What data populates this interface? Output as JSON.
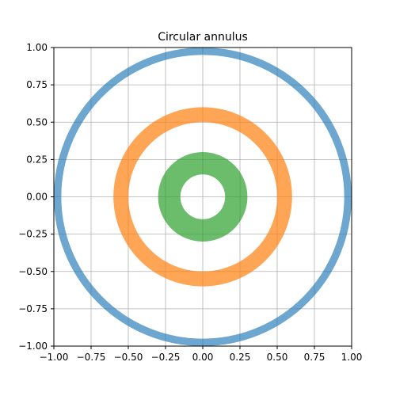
{
  "chart_data": {
    "type": "annulus",
    "title": "Circular annulus",
    "xlabel": "",
    "ylabel": "",
    "xlim": [
      -1.0,
      1.0
    ],
    "ylim": [
      -1.0,
      1.0
    ],
    "xticks": [
      -1.0,
      -0.75,
      -0.5,
      -0.25,
      0.0,
      0.25,
      0.5,
      0.75,
      1.0
    ],
    "yticks": [
      -1.0,
      -0.75,
      -0.5,
      -0.25,
      0.0,
      0.25,
      0.5,
      0.75,
      1.0
    ],
    "xtick_labels": [
      "−1.00",
      "−0.75",
      "−0.50",
      "−0.25",
      "0.00",
      "0.25",
      "0.50",
      "0.75",
      "1.00"
    ],
    "ytick_labels": [
      "−1.00",
      "−0.75",
      "−0.50",
      "−0.25",
      "0.00",
      "0.25",
      "0.50",
      "0.75",
      "1.00"
    ],
    "grid": true,
    "rings": [
      {
        "center": [
          0,
          0
        ],
        "inner_radius": 0.95,
        "outer_radius": 1.0,
        "color": "#1f77b4",
        "alpha": 0.65
      },
      {
        "center": [
          0,
          0
        ],
        "inner_radius": 0.5,
        "outer_radius": 0.6,
        "color": "#ff7f0e",
        "alpha": 0.7
      },
      {
        "center": [
          0,
          0
        ],
        "inner_radius": 0.15,
        "outer_radius": 0.3,
        "color": "#2ca02c",
        "alpha": 0.7
      }
    ]
  }
}
